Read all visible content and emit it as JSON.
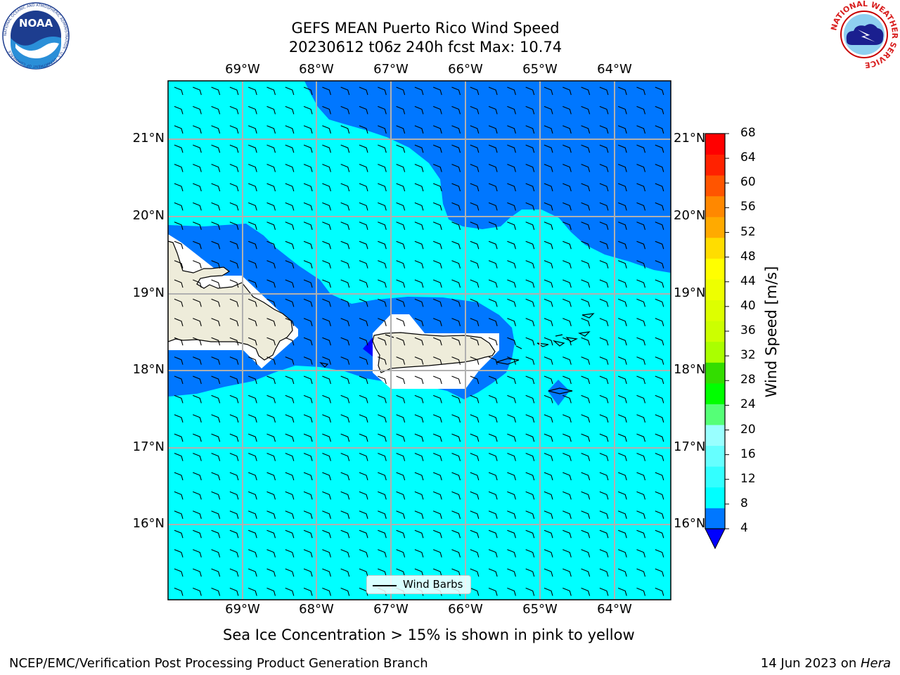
{
  "header": {
    "title_line1": "GEFS MEAN Puerto Rico Wind Speed",
    "title_line2": "20230612 t06z 240h fcst   Max: 10.74"
  },
  "logos": {
    "noaa_text": "NOAA",
    "noaa_ring_text": "NATIONAL OCEANIC AND ATMOSPHERIC ADMINISTRATION · U.S. DEPARTMENT OF COMMERCE",
    "nws_ring_text": "NATIONAL WEATHER SERVICE"
  },
  "map": {
    "lon_labels": [
      "69°W",
      "68°W",
      "67°W",
      "66°W",
      "65°W",
      "64°W"
    ],
    "lat_labels": [
      "21°N",
      "20°N",
      "19°N",
      "18°N",
      "17°N",
      "16°N"
    ],
    "legend_label": "Wind Barbs",
    "colors": {
      "land": "#eeecda",
      "band_4_8": "#0077ff",
      "band_8_12": "#00ffff",
      "below_4": "#0000ff",
      "grid": "#b0b0b0"
    }
  },
  "colorbar": {
    "title": "Wind Speed [m/s]",
    "ticks": [
      "4",
      "8",
      "12",
      "16",
      "20",
      "24",
      "28",
      "32",
      "36",
      "40",
      "44",
      "48",
      "52",
      "56",
      "60",
      "64",
      "68"
    ],
    "colors": [
      "#0077ff",
      "#00ffff",
      "#33ffff",
      "#66ffff",
      "#99ffff",
      "#55ff77",
      "#00ff00",
      "#33dd00",
      "#aaff00",
      "#ccff00",
      "#ddff00",
      "#eeff00",
      "#ffff00",
      "#ffdd00",
      "#ffaa00",
      "#ff8800",
      "#ff5500",
      "#ff2200",
      "#ff0000"
    ],
    "under_color": "#0000ff"
  },
  "footer": {
    "note": "Sea Ice Concentration > 15% is shown in pink to yellow",
    "branch": "NCEP/EMC/Verification Post Processing Product Generation Branch",
    "date": "14 Jun 2023 on ",
    "machine": "Hera"
  }
}
